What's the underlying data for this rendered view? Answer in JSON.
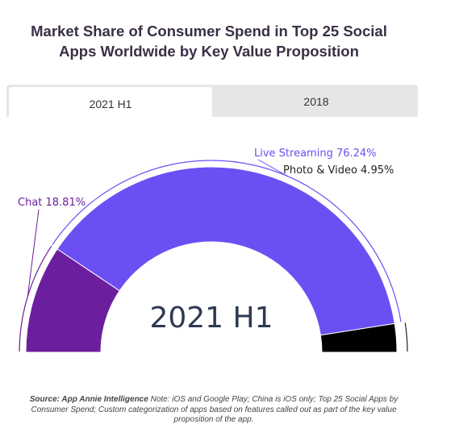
{
  "header": {
    "title_line1": "Market Share of Consumer Spend in Top 25 Social",
    "title_line2": "Apps Worldwide by Key Value Proposition"
  },
  "tabs": [
    {
      "label": "2021 H1",
      "active": true
    },
    {
      "label": "2018",
      "active": false
    }
  ],
  "chart_data": {
    "type": "pie",
    "style": "half-donut",
    "center_label": "2021 H1",
    "categories": [
      "Chat",
      "Live Streaming",
      "Photo & Video"
    ],
    "values": [
      18.81,
      76.24,
      4.95
    ],
    "labels": [
      "Chat 18.81%",
      "Live Streaming 76.24%",
      "Photo & Video 4.95%"
    ],
    "colors": [
      "#6b1f9e",
      "#6b4ff3",
      "#000000"
    ],
    "label_colors": [
      "#6b1f9e",
      "#6b4ff3",
      "#222222"
    ]
  },
  "footer": {
    "source_bold": "Source: App Annie Intelligence",
    "source_note": " Note: iOS and Google Play; China is iOS only; Top 25 Social Apps by Consumer Spend; Custom categorization of apps based on features called out as part of the key value proposition of the app."
  }
}
